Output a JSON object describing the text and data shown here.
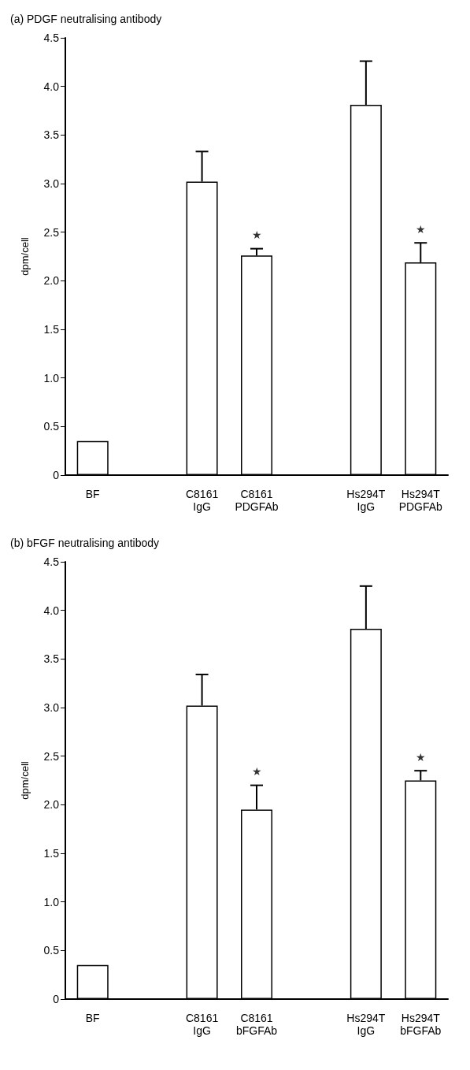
{
  "chart_data": [
    {
      "type": "bar",
      "title": "(a) PDGF neutralising antibody",
      "ylabel": "dpm/cell",
      "categories": [
        "BF",
        null,
        "C8161 IgG",
        "C8161 PDGFAb",
        null,
        "Hs294T IgG",
        "Hs294T PDGFAb"
      ],
      "values": [
        0.35,
        null,
        3.02,
        2.26,
        null,
        3.81,
        2.19
      ],
      "errors": [
        null,
        null,
        [
          3.02,
          3.33
        ],
        [
          2.26,
          2.33
        ],
        null,
        [
          3.81,
          4.26
        ],
        [
          2.19,
          2.39
        ]
      ],
      "colors": [
        "#ffffff",
        "#ffffff",
        "#ffffff",
        "#ffffff",
        "#ffffff",
        "#ffffff",
        "#ffffff"
      ],
      "ylim": [
        0,
        4.5
      ],
      "yticks": [
        0,
        {
          "value": 0.5,
          "label": "0.5"
        },
        {
          "value": 1,
          "label": "1.0"
        },
        {
          "value": 1.5,
          "label": "1.5"
        },
        {
          "value": 2,
          "label": "2.0"
        },
        {
          "value": 2.5,
          "label": "2.5"
        },
        {
          "value": 3,
          "label": "3.0"
        },
        {
          "value": 3.5,
          "label": "3.5"
        },
        {
          "value": 4,
          "label": "4.0"
        },
        {
          "value": 4.5,
          "label": "4.5"
        }
      ],
      "annotations": [
        {
          "text": "★",
          "x": "C8161 PDGFAb",
          "y": 2.33
        },
        {
          "text": "★",
          "x": "Hs294T PDGFAb",
          "y": 2.39
        }
      ],
      "grid": false
    },
    {
      "type": "bar",
      "title": "(b) bFGF neutralising antibody",
      "ylabel": "dpm/cell",
      "categories": [
        "BF",
        null,
        "C8161 IgG",
        "C8161 bFGFAb",
        null,
        "Hs294T IgG",
        "Hs294T bFGFAb"
      ],
      "values": [
        0.35,
        null,
        3.02,
        1.95,
        null,
        3.81,
        2.25
      ],
      "errors": [
        null,
        null,
        [
          3.02,
          3.34
        ],
        [
          1.95,
          2.2
        ],
        null,
        [
          3.81,
          4.25
        ],
        [
          2.25,
          2.35
        ]
      ],
      "colors": [
        "#ffffff",
        "#ffffff",
        "#ffffff",
        "#ffffff",
        "#ffffff",
        "#ffffff",
        "#ffffff"
      ],
      "ylim": [
        0,
        4.5
      ],
      "yticks": [
        0,
        {
          "value": 0.5,
          "label": "0.5"
        },
        {
          "value": 1,
          "label": "1.0"
        },
        {
          "value": 1.5,
          "label": "1.5"
        },
        {
          "value": 2,
          "label": "2.0"
        },
        {
          "value": 2.5,
          "label": "2.5"
        },
        {
          "value": 3,
          "label": "3.0"
        },
        {
          "value": 3.5,
          "label": "3.5"
        },
        {
          "value": 4,
          "label": "4.0"
        },
        {
          "value": 4.5,
          "label": "4.5"
        }
      ],
      "annotations": [
        {
          "text": "★",
          "x": "C8161 bFGFAb",
          "y": 2.2
        },
        {
          "text": "★",
          "x": "Hs294T bFGFAb",
          "y": 2.35
        }
      ],
      "grid": false
    }
  ]
}
